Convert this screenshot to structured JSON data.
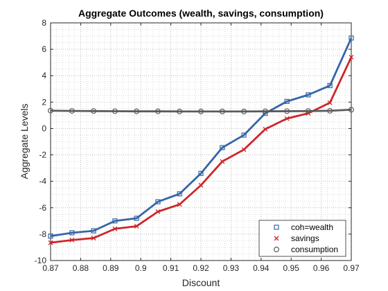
{
  "chart_data": {
    "type": "line",
    "title": "Aggregate Outcomes (wealth, savings, consumption)",
    "xlabel": "Discount",
    "ylabel": "Aggregate Levels",
    "xlim": [
      0.87,
      0.97
    ],
    "ylim": [
      -10,
      8
    ],
    "xticks": [
      0.87,
      0.88,
      0.89,
      0.9,
      0.91,
      0.92,
      0.93,
      0.94,
      0.95,
      0.96,
      0.97
    ],
    "xtick_labels": [
      "0.87",
      "0.88",
      "0.89",
      "0.9",
      "0.91",
      "0.92",
      "0.93",
      "0.94",
      "0.95",
      "0.96",
      "0.97"
    ],
    "yticks": [
      -10,
      -8,
      -6,
      -4,
      -2,
      0,
      2,
      4,
      6,
      8
    ],
    "ytick_labels": [
      "-10",
      "-8",
      "-6",
      "-4",
      "-2",
      "0",
      "2",
      "4",
      "6",
      "8"
    ],
    "grid": "major and minor, dotted",
    "legend_position": "bottom-right",
    "x": [
      0.87,
      0.8771,
      0.8843,
      0.8914,
      0.8986,
      0.9057,
      0.9129,
      0.92,
      0.9271,
      0.9343,
      0.9414,
      0.9486,
      0.9557,
      0.9629,
      0.97
    ],
    "series": [
      {
        "name": "coh=wealth",
        "color": "#3465a8",
        "marker": "square",
        "values": [
          -8.15,
          -7.9,
          -7.75,
          -7.0,
          -6.8,
          -5.55,
          -4.95,
          -3.4,
          -1.45,
          -0.5,
          1.15,
          2.05,
          2.55,
          3.25,
          6.85
        ]
      },
      {
        "name": "savings",
        "color": "#cc2529",
        "marker": "x",
        "values": [
          -8.65,
          -8.45,
          -8.3,
          -7.6,
          -7.4,
          -6.3,
          -5.75,
          -4.3,
          -2.5,
          -1.6,
          -0.05,
          0.75,
          1.15,
          1.95,
          5.4
        ]
      },
      {
        "name": "consumption",
        "color": "#5a5a5a",
        "marker": "circle",
        "values": [
          1.35,
          1.33,
          1.32,
          1.31,
          1.3,
          1.3,
          1.29,
          1.29,
          1.29,
          1.29,
          1.3,
          1.31,
          1.32,
          1.34,
          1.42
        ]
      }
    ]
  }
}
